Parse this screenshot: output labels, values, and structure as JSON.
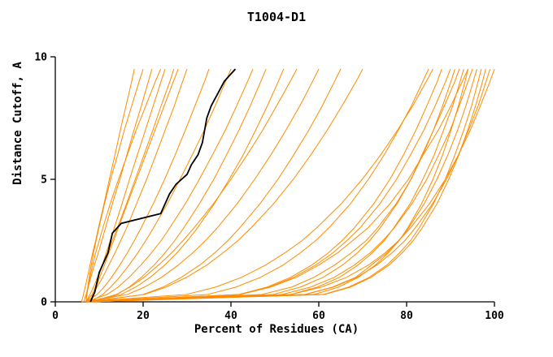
{
  "title": "T1004-D1",
  "chart_data": {
    "type": "line",
    "title": "T1004-D1",
    "xlabel": "Percent of Residues (CA)",
    "ylabel": "Distance Cutoff, A",
    "xlim": [
      0,
      100
    ],
    "ylim": [
      0,
      10
    ],
    "x_ticks": [
      0,
      20,
      40,
      60,
      80,
      100
    ],
    "y_ticks": [
      0,
      5,
      10
    ],
    "grid": false,
    "legend": "none",
    "colors": {
      "model": "#ff8c00",
      "highlight": "#000000",
      "axis": "#000000",
      "background": "#ffffff"
    },
    "y_levels": [
      0,
      0.3,
      0.6,
      1,
      1.5,
      2,
      2.5,
      3,
      4,
      5,
      6,
      7,
      8,
      9,
      9.5
    ],
    "models": [
      {
        "x": [
          6,
          6.4,
          6.8,
          7.3,
          7.9,
          8.5,
          9.2,
          9.8,
          11.1,
          12.3,
          13.6,
          14.8,
          16.1,
          17.4,
          18
        ]
      },
      {
        "x": [
          7,
          7.1,
          7.4,
          7.7,
          8.2,
          8.7,
          9.3,
          9.9,
          11.2,
          12.6,
          14.2,
          15.7,
          17.4,
          19.1,
          20
        ]
      },
      {
        "x": [
          6.5,
          7,
          7.5,
          8.1,
          8.9,
          9.8,
          10.6,
          11.4,
          13,
          14.7,
          16.3,
          17.9,
          19.6,
          21.2,
          22
        ]
      },
      {
        "x": [
          7,
          7.2,
          7.5,
          7.9,
          8.5,
          9.2,
          10,
          10.8,
          12.5,
          14.4,
          16.4,
          18.4,
          20.6,
          22.8,
          24
        ]
      },
      {
        "x": [
          8,
          8.5,
          9.1,
          9.8,
          10.7,
          11.6,
          12.5,
          13.4,
          15.2,
          16.9,
          18.7,
          20.5,
          22.3,
          24.1,
          25
        ]
      },
      {
        "x": [
          7,
          7.9,
          8.7,
          9.6,
          10.8,
          11.9,
          13,
          14.1,
          16.2,
          18.2,
          20.2,
          22.2,
          24.1,
          26.1,
          27
        ]
      },
      {
        "x": [
          8,
          8.6,
          9.3,
          10.1,
          11.2,
          12.2,
          13.3,
          14.3,
          16.4,
          18.5,
          20.6,
          22.7,
          24.8,
          26.9,
          28
        ]
      },
      {
        "x": [
          7,
          8.4,
          9.5,
          10.8,
          12.2,
          13.6,
          14.9,
          16.2,
          18.5,
          20.8,
          22.9,
          25,
          27.1,
          29,
          30
        ]
      },
      {
        "x": [
          7,
          9.5,
          11.1,
          12.8,
          14.7,
          16.4,
          18,
          19.5,
          22.3,
          24.9,
          27.3,
          29.6,
          31.8,
          34,
          35
        ]
      },
      {
        "x": [
          8,
          10.8,
          12.6,
          14.6,
          16.8,
          18.8,
          20.6,
          22.3,
          25.5,
          28.4,
          31.2,
          33.9,
          36.4,
          38.8,
          40
        ]
      },
      {
        "x": [
          7,
          11.8,
          14.3,
          16.8,
          19.5,
          21.9,
          24.1,
          26,
          29.6,
          32.8,
          35.8,
          38.7,
          41.3,
          43.8,
          45
        ]
      },
      {
        "x": [
          8,
          14,
          16.8,
          19.6,
          22.5,
          25,
          27.2,
          29.2,
          32.8,
          36.1,
          39,
          41.8,
          44.4,
          46.8,
          48
        ]
      },
      {
        "x": [
          7,
          15,
          18.3,
          21.6,
          24.9,
          27.7,
          30.1,
          32.3,
          36.2,
          39.6,
          42.8,
          45.6,
          48.3,
          50.8,
          52
        ]
      },
      {
        "x": [
          8,
          13.9,
          17,
          20.2,
          23.5,
          26.5,
          29.1,
          31.5,
          36,
          40,
          43.7,
          47.2,
          50.4,
          53.5,
          55
        ]
      },
      {
        "x": [
          7,
          16.4,
          20.3,
          24.2,
          28,
          31.3,
          34.2,
          36.8,
          41.4,
          45.4,
          49.1,
          52.5,
          55.7,
          58.6,
          60
        ]
      },
      {
        "x": [
          8,
          20,
          24.5,
          28.7,
          32.9,
          36.3,
          39.3,
          41.9,
          46.6,
          50.7,
          54.3,
          57.7,
          60.8,
          63.6,
          65
        ]
      },
      {
        "x": [
          7,
          20.3,
          25.2,
          29.9,
          34.5,
          38.2,
          41.6,
          44.5,
          49.7,
          54.2,
          58.2,
          61.9,
          65.3,
          68.5,
          70
        ]
      },
      {
        "x": [
          7,
          34.7,
          41.1,
          46.7,
          51.9,
          55.8,
          59.3,
          62.2,
          67.2,
          71.3,
          74.9,
          78.1,
          81.1,
          83.7,
          85
        ]
      },
      {
        "x": [
          8,
          41.8,
          48.2,
          53.6,
          58.4,
          62.2,
          65.3,
          68,
          72.5,
          76.2,
          79.3,
          82.1,
          84.6,
          87,
          88
        ]
      },
      {
        "x": [
          7,
          42,
          48.7,
          54.3,
          59.3,
          63.2,
          66.4,
          69.3,
          73.9,
          77.7,
          80.9,
          83.9,
          86.5,
          88.9,
          90
        ]
      },
      {
        "x": [
          8,
          49.6,
          55.8,
          61,
          65.4,
          68.8,
          71.6,
          73.9,
          77.8,
          81,
          83.7,
          86.1,
          88.2,
          90.1,
          91
        ]
      },
      {
        "x": [
          7,
          47,
          53.8,
          58.9,
          63.6,
          67.4,
          70.8,
          73.3,
          77.6,
          81,
          83.5,
          86.1,
          88.6,
          91,
          92
        ]
      },
      {
        "x": [
          8,
          53.6,
          59.7,
          64.7,
          68.9,
          72.2,
          74.9,
          77,
          80.8,
          83.7,
          86.3,
          88.4,
          90.5,
          92.2,
          93
        ]
      },
      {
        "x": [
          7,
          58.9,
          64.5,
          69,
          72.9,
          75.8,
          78.3,
          80.2,
          83.4,
          86,
          88.2,
          90.1,
          91.8,
          93.3,
          94
        ]
      },
      {
        "x": [
          8,
          51.6,
          58.1,
          63.5,
          68.1,
          71.7,
          74.6,
          77.1,
          81.2,
          84.6,
          87.3,
          89.9,
          92,
          94,
          95
        ]
      },
      {
        "x": [
          7,
          56.8,
          63.1,
          68.4,
          72,
          75.5,
          78.2,
          80.4,
          84,
          86.9,
          89.4,
          91.6,
          93.5,
          95.2,
          96
        ]
      },
      {
        "x": [
          8,
          61,
          66.8,
          71.5,
          75.5,
          78.4,
          80.9,
          82.8,
          86.1,
          88.8,
          91,
          93,
          94.8,
          96.3,
          97
        ]
      },
      {
        "x": [
          7,
          61.2,
          67.2,
          71.9,
          76,
          79,
          81.5,
          83.5,
          86.9,
          89.6,
          91.9,
          93.9,
          95.7,
          97.3,
          98
        ]
      },
      {
        "x": [
          8,
          56.9,
          63.3,
          68.7,
          73.2,
          76.7,
          79.6,
          81.9,
          85.9,
          89.1,
          91.8,
          94.1,
          96.3,
          98.1,
          99
        ]
      },
      {
        "x": [
          7,
          53.6,
          60.6,
          66.3,
          71.3,
          75.1,
          78.2,
          80.8,
          85.2,
          88.8,
          91.8,
          94.5,
          96.8,
          99,
          100
        ]
      },
      {
        "x": [
          6,
          29.8,
          36.5,
          42.4,
          47.9,
          52.3,
          56.2,
          59.4,
          65.1,
          69.9,
          74.1,
          77.9,
          81.4,
          84.5,
          86
        ]
      },
      {
        "x": [
          9,
          42.2,
          49,
          54.9,
          60,
          64.3,
          67.7,
          71.1,
          76.2,
          80.4,
          83.8,
          87.2,
          90.1,
          92.7,
          94
        ]
      }
    ],
    "highlight": {
      "name": "selected-model",
      "points": [
        [
          8,
          0
        ],
        [
          9,
          0.4
        ],
        [
          9.5,
          0.8
        ],
        [
          10,
          1.2
        ],
        [
          11,
          1.6
        ],
        [
          12,
          2
        ],
        [
          12.5,
          2.4
        ],
        [
          13,
          2.8
        ],
        [
          15,
          3.2
        ],
        [
          24,
          3.6
        ],
        [
          25,
          4
        ],
        [
          26,
          4.4
        ],
        [
          27.5,
          4.8
        ],
        [
          30,
          5.2
        ],
        [
          31,
          5.6
        ],
        [
          32.5,
          6
        ],
        [
          33.5,
          6.5
        ],
        [
          34,
          7
        ],
        [
          34.5,
          7.5
        ],
        [
          35.5,
          8
        ],
        [
          37,
          8.5
        ],
        [
          38.5,
          9
        ],
        [
          41,
          9.5
        ]
      ]
    }
  }
}
